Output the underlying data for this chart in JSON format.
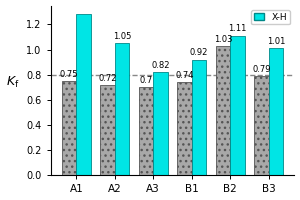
{
  "categories": [
    "A1",
    "A2",
    "A3",
    "B1",
    "B2",
    "B3"
  ],
  "hatched_values": [
    0.75,
    0.72,
    0.7,
    0.74,
    1.03,
    0.79
  ],
  "cyan_values": [
    1.28,
    1.05,
    0.82,
    0.92,
    1.11,
    1.01
  ],
  "hatched_color": "#a8a8a8",
  "cyan_color": "#00e5e5",
  "dashed_line_y": 0.8,
  "ylabel": "$K_{\\mathrm{f}}$",
  "ylim": [
    0.0,
    1.35
  ],
  "yticks": [
    0.0,
    0.2,
    0.4,
    0.6,
    0.8,
    1.0,
    1.2
  ],
  "legend_label": "X-H",
  "bar_width": 0.38,
  "annotation_fontsize": 6,
  "background_color": "#ffffff"
}
